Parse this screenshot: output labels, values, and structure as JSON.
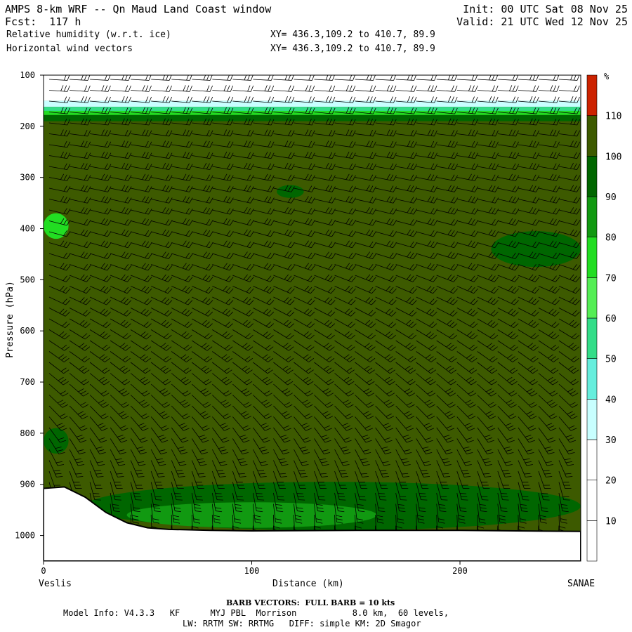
{
  "header": {
    "line1_left": "AMPS 8-km WRF -- Qn Maud Land Coast window",
    "line1_right": "Init: 00 UTC Sat 08 Nov 25",
    "line2_left": "Fcst:  117 h",
    "line2_right": "Valid: 21 UTC Wed 12 Nov 25",
    "line3_left": "Relative humidity (w.r.t. ice)",
    "line3_mid": "XY= 436.3,109.2 to 410.7, 89.9",
    "line4_left": "Horizontal wind vectors",
    "line4_mid": "XY= 436.3,109.2 to 410.7, 89.9"
  },
  "footer": {
    "left_endpoint": "Veslis",
    "right_endpoint": "SANAE",
    "barb_note": "BARB VECTORS:  FULL BARB = 10 kts",
    "model_info_line1": "Model Info: V4.3.3   KF      MYJ PBL  Morrison           8.0 km,  60 levels,",
    "model_info_line2": "LW: RRTM SW: RRTMG   DIFF: simple KM: 2D Smagor"
  },
  "chart_data": {
    "type": "heatmap",
    "title": "Relative humidity (w.r.t. ice)",
    "xlabel": "Distance (km)",
    "ylabel": "Pressure (hPa)",
    "xlim": [
      0,
      258
    ],
    "ylim": [
      1050,
      100
    ],
    "x_ticks": [
      0,
      100,
      200
    ],
    "y_ticks": [
      100,
      200,
      300,
      400,
      500,
      600,
      700,
      800,
      900,
      1000
    ],
    "colorbar": {
      "unit": "%",
      "levels": [
        10,
        20,
        30,
        40,
        50,
        60,
        70,
        80,
        90,
        100,
        110
      ],
      "colors": [
        "#ffffff",
        "#ffffff",
        "#ffffff",
        "#c8ffff",
        "#66eedd",
        "#33dd88",
        "#55ee55",
        "#22dd22",
        "#119911",
        "#006600",
        "#3d5a00",
        "#cc2200"
      ]
    },
    "background_rh": 105,
    "regions": [
      {
        "rh": 35,
        "x": [
          0,
          258
        ],
        "p": [
          150,
          162
        ]
      },
      {
        "rh": 55,
        "x": [
          0,
          258
        ],
        "p": [
          162,
          170
        ]
      },
      {
        "rh": 75,
        "x": [
          0,
          258
        ],
        "p": [
          170,
          178
        ]
      },
      {
        "rh": 95,
        "x": [
          0,
          258
        ],
        "p": [
          178,
          190
        ]
      },
      {
        "rh": 95,
        "x": [
          112,
          125
        ],
        "p": [
          315,
          340
        ]
      },
      {
        "rh": 75,
        "x": [
          0,
          12
        ],
        "p": [
          370,
          420
        ]
      },
      {
        "rh": 95,
        "x": [
          215,
          258
        ],
        "p": [
          405,
          475
        ]
      },
      {
        "rh": 95,
        "x": [
          0,
          12
        ],
        "p": [
          790,
          840
        ]
      },
      {
        "rh": 95,
        "x": [
          20,
          258
        ],
        "p": [
          895,
          990
        ]
      },
      {
        "rh": 85,
        "x": [
          40,
          160
        ],
        "p": [
          935,
          985
        ]
      }
    ],
    "terrain": {
      "x": [
        0,
        10,
        20,
        30,
        40,
        50,
        60,
        80,
        100,
        150,
        200,
        258
      ],
      "p": [
        908,
        905,
        925,
        955,
        975,
        985,
        988,
        990,
        991,
        990,
        990,
        992
      ]
    },
    "wind_barbs": {
      "unit": "kts",
      "full_barb": 10
    }
  }
}
